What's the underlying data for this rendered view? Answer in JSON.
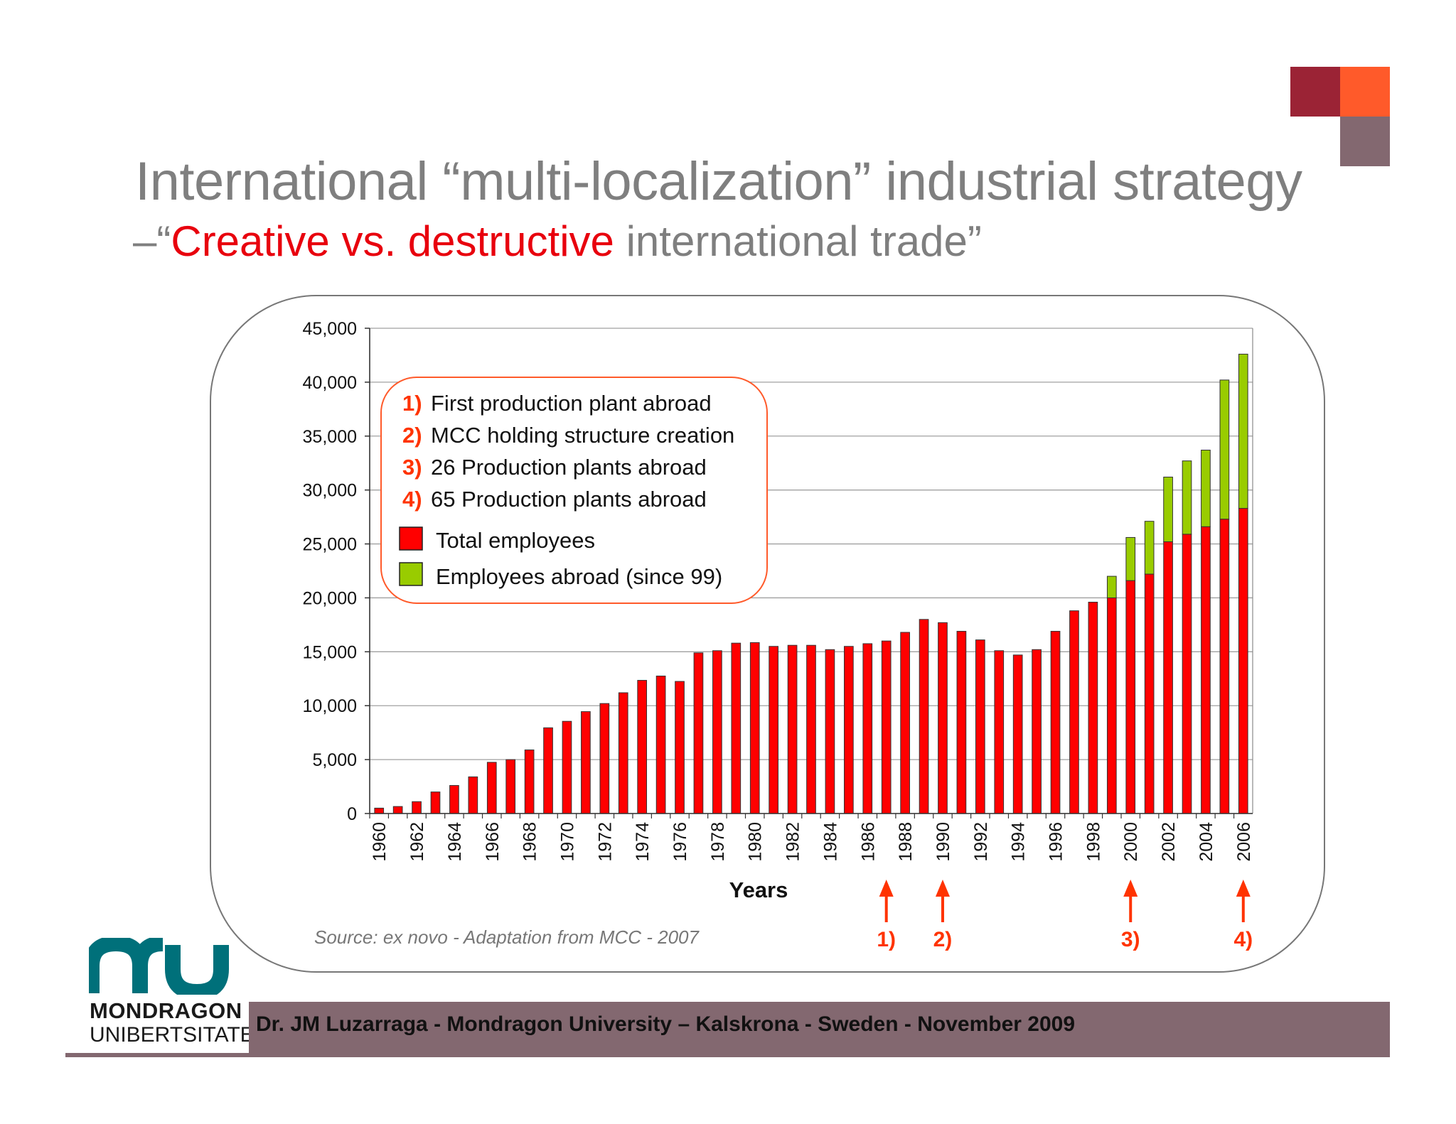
{
  "slide": {
    "title": "International “multi-localization” industrial strategy",
    "subtitle_prefix": "–“",
    "subtitle_red": "Creative vs. destructive",
    "subtitle_rest": " international trade”",
    "source": "Source: ex novo - Adaptation from MCC -  2007",
    "footer": "Dr. JM Luzarraga - Mondragon University – Kalskrona - Sweden - November 2009",
    "logo_line1": "MONDRAGON",
    "logo_line2": "UNIBERTSITATEA",
    "colors": {
      "accent_red": "#e8000d",
      "marker_orange": "#ff3300",
      "footer_bar": "#836870",
      "square_dark_red": "#9b2335",
      "square_orange": "#ff5a2a",
      "square_mauve": "#836870",
      "logo_teal": "#00707a"
    }
  },
  "legend": {
    "notes": [
      {
        "num": "1)",
        "text": "First production plant abroad"
      },
      {
        "num": "2)",
        "text": "MCC holding structure creation"
      },
      {
        "num": "3)",
        "text": "26 Production plants abroad"
      },
      {
        "num": "4)",
        "text": "65 Production plants abroad"
      }
    ],
    "series": [
      {
        "label": "Total employees",
        "color": "#ff0000"
      },
      {
        "label": "Employees abroad (since 99)",
        "color": "#99cc00"
      }
    ]
  },
  "markers": [
    {
      "label": "1)",
      "year": 1987
    },
    {
      "label": "2)",
      "year": 1990
    },
    {
      "label": "3)",
      "year": 2000
    },
    {
      "label": "4)",
      "year": 2006
    }
  ],
  "chart_data": {
    "type": "bar",
    "stacked": true,
    "xlabel": "Years",
    "ylabel": "",
    "ylim": [
      0,
      45000
    ],
    "yticks": [
      "0",
      "5,000",
      "10,000",
      "15,000",
      "20,000",
      "25,000",
      "30,000",
      "35,000",
      "40,000",
      "45,000"
    ],
    "grid": true,
    "categories": [
      1960,
      1961,
      1962,
      1963,
      1964,
      1965,
      1966,
      1967,
      1968,
      1969,
      1970,
      1971,
      1972,
      1973,
      1974,
      1975,
      1976,
      1977,
      1978,
      1979,
      1980,
      1981,
      1982,
      1983,
      1984,
      1985,
      1986,
      1987,
      1988,
      1989,
      1990,
      1991,
      1992,
      1993,
      1994,
      1995,
      1996,
      1997,
      1998,
      1999,
      2000,
      2001,
      2002,
      2003,
      2004,
      2005,
      2006
    ],
    "tick_labels": [
      "1960",
      "1962",
      "1964",
      "1966",
      "1968",
      "1970",
      "1972",
      "1974",
      "1976",
      "1978",
      "1980",
      "1982",
      "1984",
      "1986",
      "1988",
      "1990",
      "1992",
      "1994",
      "1996",
      "1998",
      "2000",
      "2002",
      "2004",
      "2006"
    ],
    "series": [
      {
        "name": "Total employees",
        "color": "#ff0000",
        "values": [
          500,
          650,
          1100,
          2000,
          2600,
          3400,
          4750,
          5000,
          5900,
          7950,
          8550,
          9450,
          10200,
          11200,
          12350,
          12750,
          12250,
          14900,
          15100,
          15800,
          15850,
          15500,
          15600,
          15600,
          15200,
          15500,
          15750,
          16000,
          16800,
          18000,
          17700,
          16900,
          16100,
          15100,
          14700,
          15200,
          16900,
          18800,
          19600,
          20000,
          21600,
          22200,
          25200,
          25900,
          26600,
          27300,
          28300
        ]
      },
      {
        "name": "Employees abroad (since 99)",
        "color": "#99cc00",
        "values": [
          0,
          0,
          0,
          0,
          0,
          0,
          0,
          0,
          0,
          0,
          0,
          0,
          0,
          0,
          0,
          0,
          0,
          0,
          0,
          0,
          0,
          0,
          0,
          0,
          0,
          0,
          0,
          0,
          0,
          0,
          0,
          0,
          0,
          0,
          0,
          0,
          0,
          0,
          0,
          2000,
          4000,
          4900,
          6000,
          6800,
          7100,
          12900,
          14300
        ]
      }
    ]
  }
}
